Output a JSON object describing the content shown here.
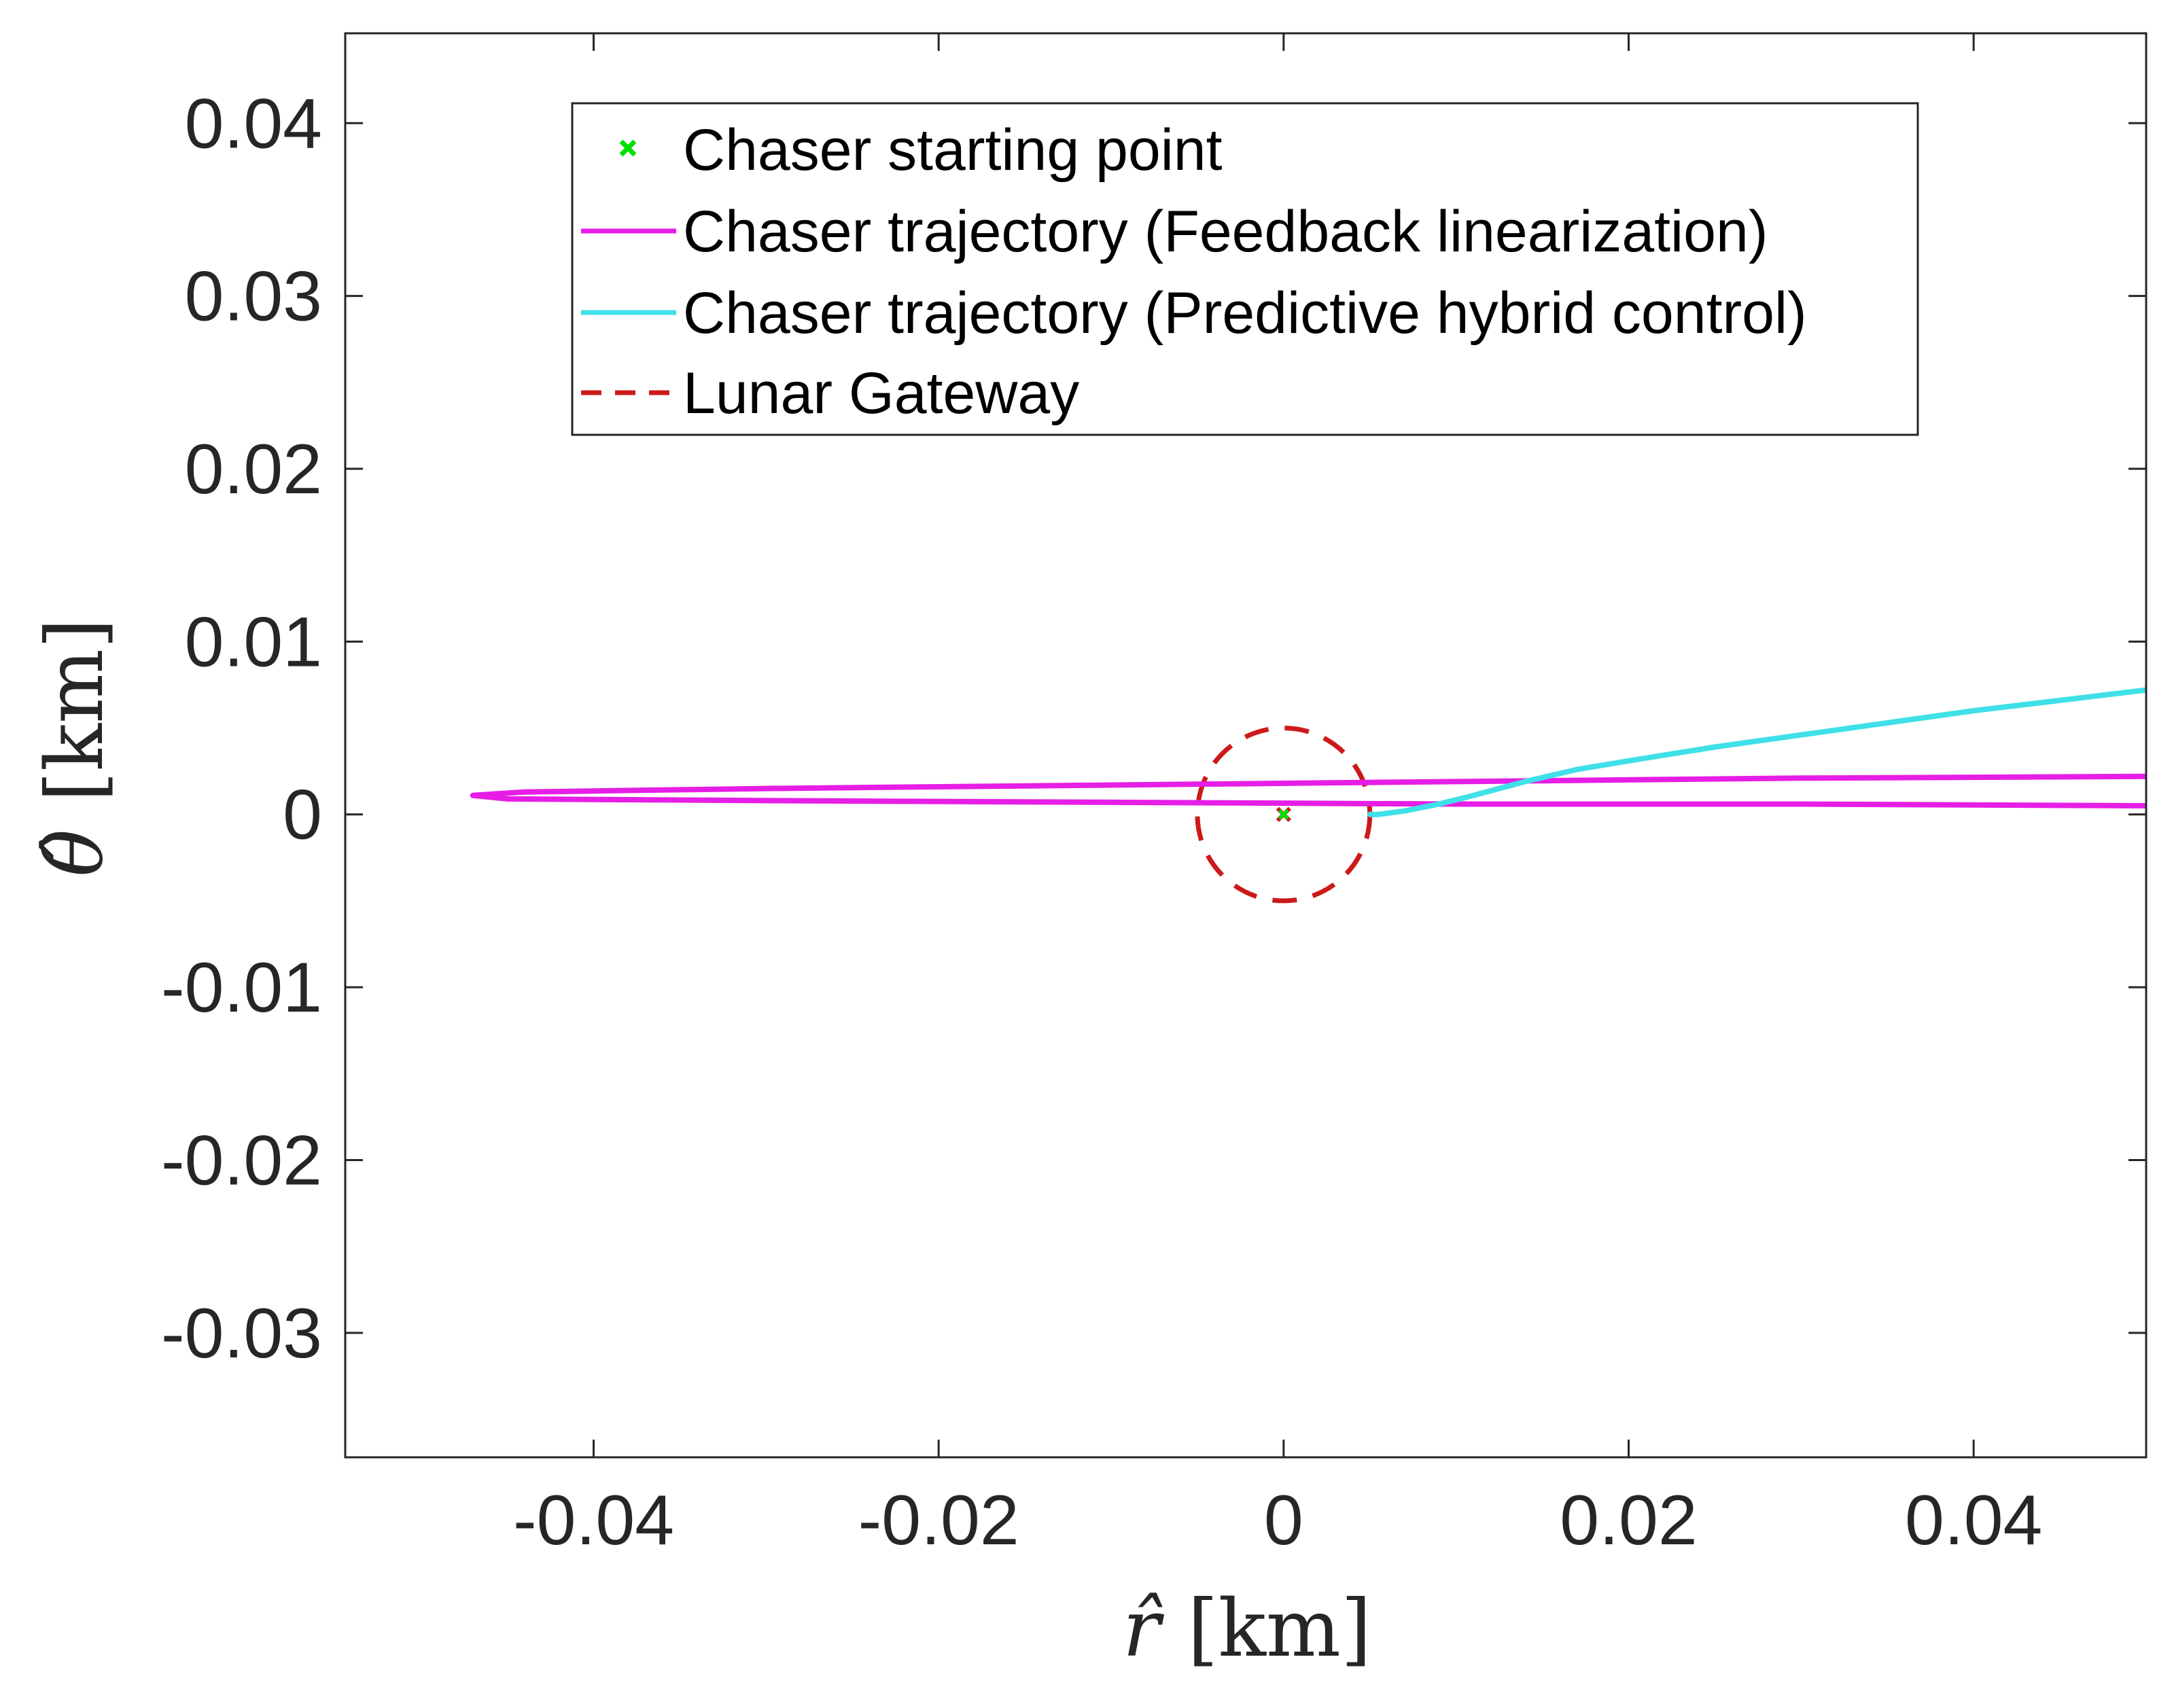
{
  "chart_data": {
    "type": "line",
    "title": "",
    "xlabel_symbol": "r̂",
    "xlabel_unit": "[km]",
    "ylabel_symbol": "θ̂",
    "ylabel_unit": "[km]",
    "xlim": [
      -0.0544,
      0.05
    ],
    "ylim": [
      -0.0372,
      0.0452
    ],
    "grid": false,
    "legend_position": "top-center",
    "x_ticks": [
      -0.04,
      -0.02,
      0,
      0.02,
      0.04
    ],
    "x_tick_labels": [
      "-0.04",
      "-0.02",
      "0",
      "0.02",
      "0.04"
    ],
    "y_ticks": [
      0.04,
      0.03,
      0.02,
      0.01,
      0,
      -0.01,
      -0.02,
      -0.03
    ],
    "y_tick_labels": [
      "0.04",
      "0.03",
      "0.02",
      "0.01",
      "0",
      "-0.01",
      "-0.02",
      "-0.03"
    ],
    "series": [
      {
        "name": "Chaser starting point",
        "kind": "marker",
        "color": "#00e000",
        "x": [
          0
        ],
        "y": [
          0
        ]
      },
      {
        "name": "Chaser trajectory (Feedback linearization)",
        "kind": "line",
        "color": "#e61ee6",
        "x": [
          0.05,
          0.03,
          0.01,
          -0.01,
          -0.03,
          -0.044,
          -0.047,
          -0.045,
          -0.03,
          -0.01,
          0.01,
          0.03,
          0.05
        ],
        "y": [
          0.0022,
          0.0021,
          0.0019,
          0.0017,
          0.0015,
          0.0013,
          0.0011,
          0.0009,
          0.0008,
          0.0007,
          0.0006,
          0.0006,
          0.0005
        ]
      },
      {
        "name": "Chaser trajectory (Predictive hybrid control)",
        "kind": "line",
        "color": "#3fe0e8",
        "x": [
          0.05,
          0.045,
          0.04,
          0.035,
          0.03,
          0.025,
          0.02,
          0.017,
          0.014,
          0.011,
          0.009,
          0.007,
          0.0055,
          0.005
        ],
        "y": [
          0.0072,
          0.0066,
          0.006,
          0.0053,
          0.0046,
          0.0039,
          0.0031,
          0.0026,
          0.0019,
          0.0011,
          0.0006,
          0.0002,
          0.0,
          0.0
        ]
      },
      {
        "name": "Lunar Gateway",
        "kind": "dashed-circle",
        "color": "#cc1a1a",
        "center": [
          0,
          0
        ],
        "radius": 0.005
      }
    ]
  }
}
